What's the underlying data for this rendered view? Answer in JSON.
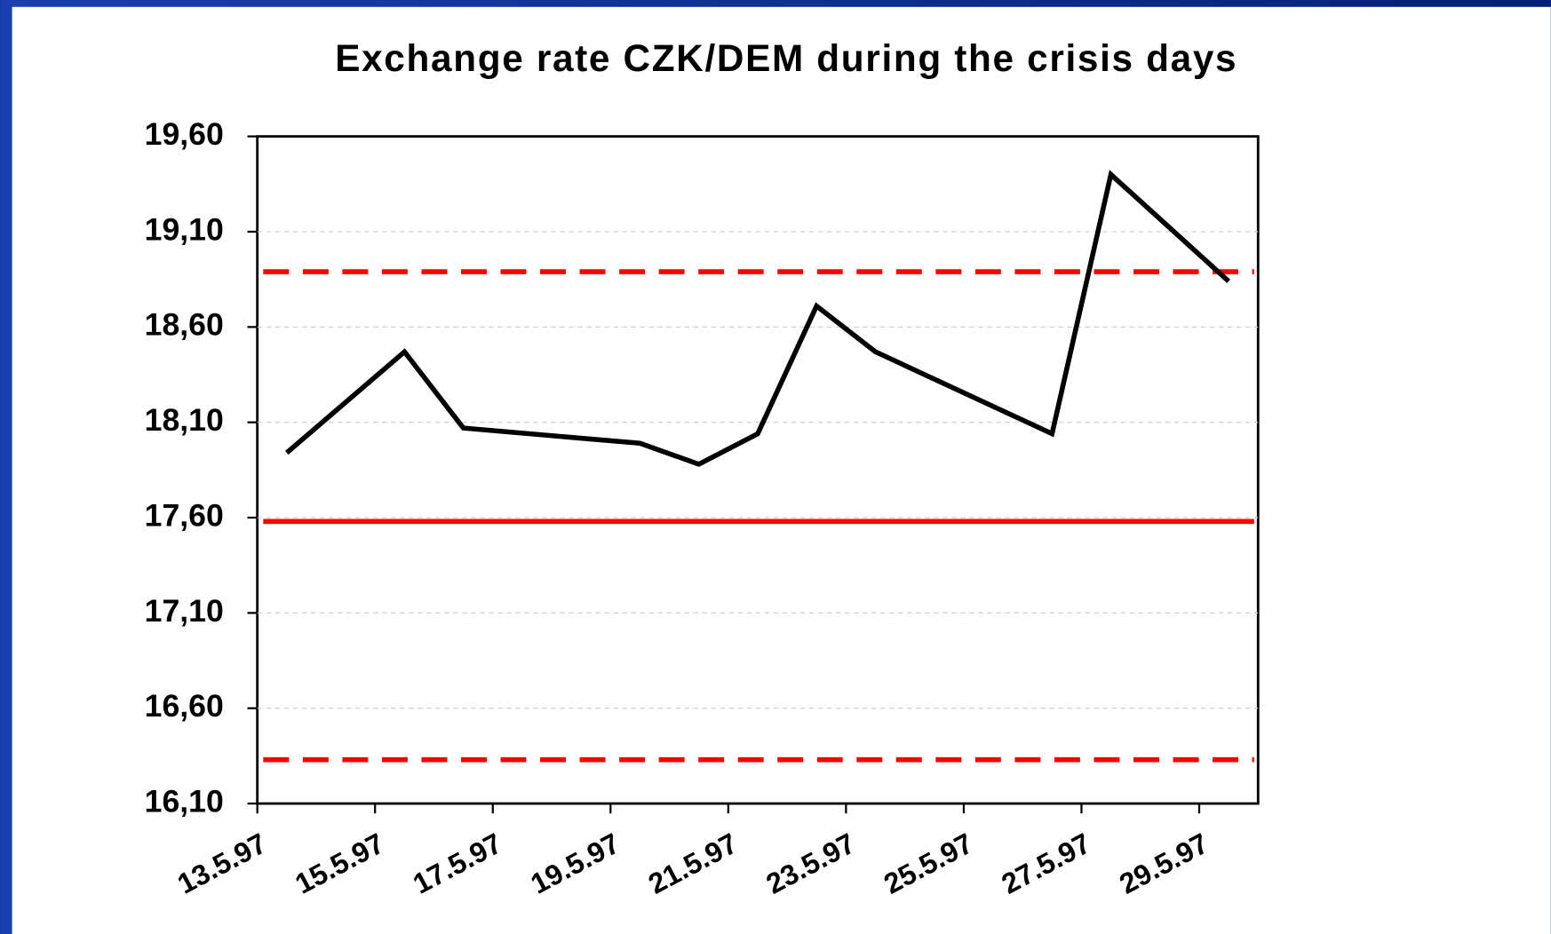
{
  "chart_data": {
    "type": "line",
    "title": "Exchange rate CZK/DEM during the crisis days",
    "x": [
      "1997-05-13",
      "1997-05-15",
      "1997-05-16",
      "1997-05-19",
      "1997-05-20",
      "1997-05-21",
      "1997-05-22",
      "1997-05-23",
      "1997-05-26",
      "1997-05-27",
      "1997-05-29"
    ],
    "series": [
      {
        "color": "#000000",
        "values": [
          17.94,
          18.47,
          18.07,
          17.99,
          17.88,
          18.04,
          18.71,
          18.47,
          18.04,
          19.4,
          18.84
        ]
      }
    ],
    "reference_lines": [
      {
        "value": 18.89,
        "style": "dashed",
        "color": "#ff0000"
      },
      {
        "value": 17.58,
        "style": "solid",
        "color": "#ff0000"
      },
      {
        "value": 16.33,
        "style": "dashed",
        "color": "#ff0000"
      }
    ],
    "xlim": [
      "1997-05-13",
      "1997-05-30"
    ],
    "xticks": [
      {
        "value": "1997-05-13",
        "label": "13.5.97"
      },
      {
        "value": "1997-05-15",
        "label": "15.5.97"
      },
      {
        "value": "1997-05-17",
        "label": "17.5.97"
      },
      {
        "value": "1997-05-19",
        "label": "19.5.97"
      },
      {
        "value": "1997-05-21",
        "label": "21.5.97"
      },
      {
        "value": "1997-05-23",
        "label": "23.5.97"
      },
      {
        "value": "1997-05-25",
        "label": "25.5.97"
      },
      {
        "value": "1997-05-27",
        "label": "27.5.97"
      },
      {
        "value": "1997-05-29",
        "label": "29.5.97"
      }
    ],
    "ylim": [
      16.1,
      19.6
    ],
    "yticks": [
      {
        "value": 16.1,
        "label": "16,10"
      },
      {
        "value": 16.6,
        "label": "16,60"
      },
      {
        "value": 17.1,
        "label": "17,10"
      },
      {
        "value": 17.6,
        "label": "17,60"
      },
      {
        "value": 18.1,
        "label": "18,10"
      },
      {
        "value": 18.6,
        "label": "18,60"
      },
      {
        "value": 19.1,
        "label": "19,10"
      },
      {
        "value": 19.6,
        "label": "19,60"
      }
    ],
    "grid": true
  }
}
